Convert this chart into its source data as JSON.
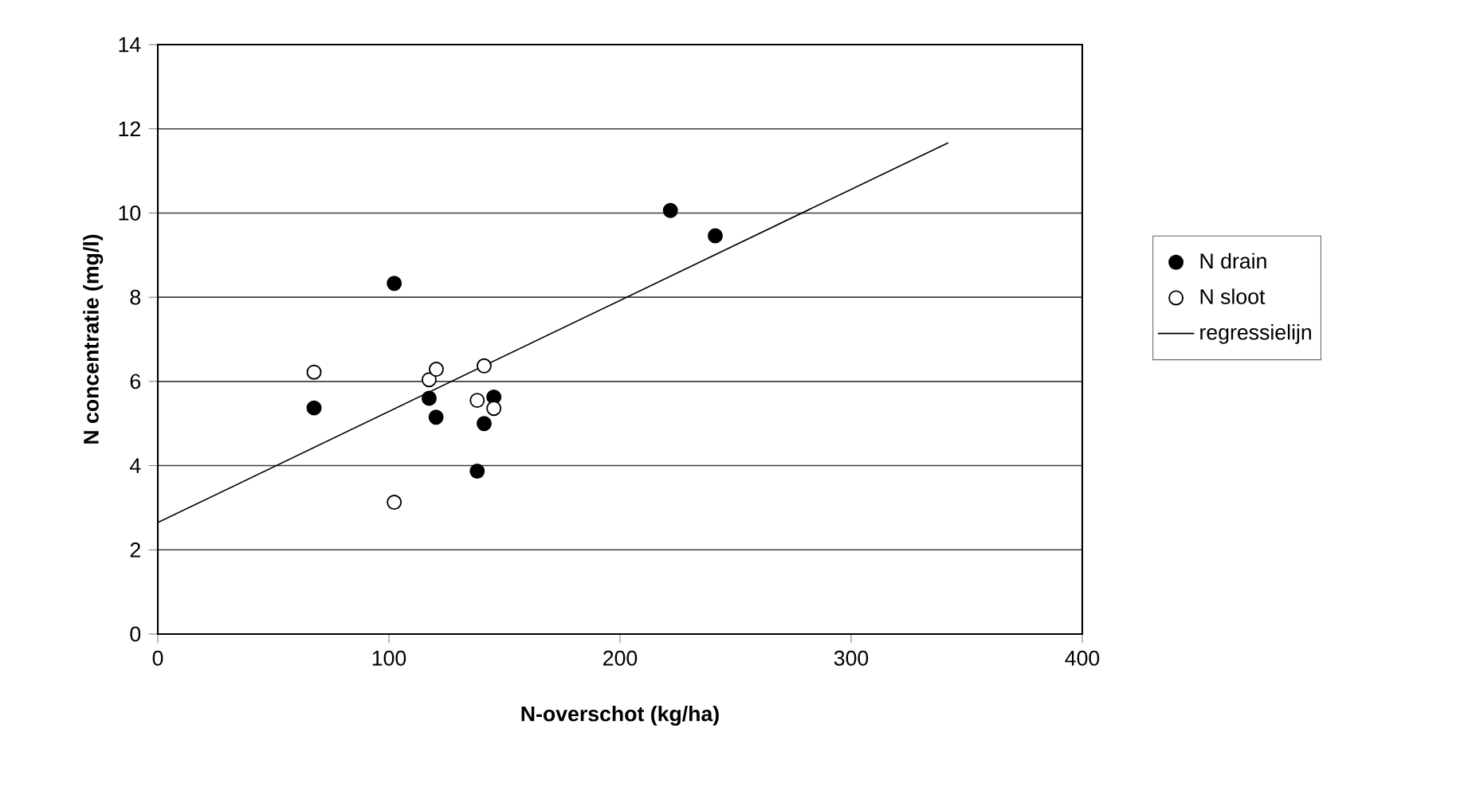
{
  "chart_data": {
    "type": "scatter",
    "xlabel": "N-overschot (kg/ha)",
    "ylabel": "N concentratie (mg/l)",
    "xlim": [
      0,
      400
    ],
    "xticks": [
      0,
      100,
      200,
      300,
      400
    ],
    "ylim": [
      0,
      14
    ],
    "yticks": [
      0,
      2,
      4,
      6,
      8,
      10,
      12,
      14
    ],
    "grid": "y",
    "legend": "right",
    "marker": "circle",
    "series": [
      {
        "name": "N drain",
        "color": "#000000",
        "x": [
          67.6,
          102.3,
          117.4,
          120.4,
          138.2,
          141.2,
          145.4,
          221.8,
          241.2
        ],
        "values": [
          5.37,
          8.33,
          5.6,
          5.15,
          3.87,
          5.0,
          5.63,
          10.06,
          9.46
        ]
      },
      {
        "name": "N sloot",
        "color": "#ffffff",
        "x": [
          67.6,
          102.3,
          117.4,
          120.5,
          138.2,
          141.2,
          145.4
        ],
        "values": [
          6.22,
          3.13,
          6.04,
          6.29,
          5.55,
          6.37,
          5.36
        ]
      },
      {
        "name": "regressielijn",
        "type": "line",
        "color": "#000000",
        "marker": "none",
        "x": [
          0,
          342
        ],
        "values": [
          2.65,
          11.67
        ]
      }
    ]
  }
}
